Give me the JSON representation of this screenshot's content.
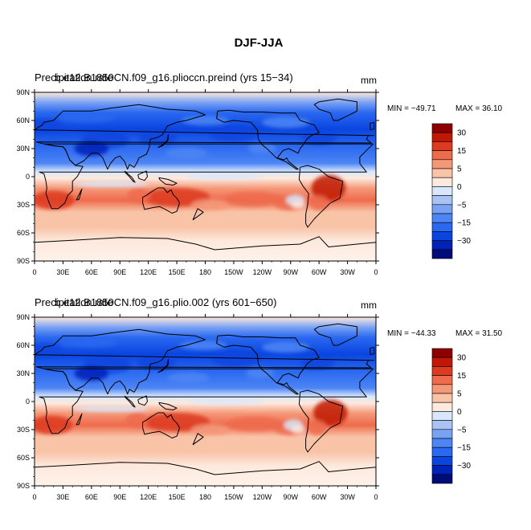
{
  "page": {
    "title": "DJF-JJA"
  },
  "colorbar": {
    "levels": [
      -30,
      -25,
      -20,
      -15,
      -10,
      -5,
      -2,
      2,
      5,
      10,
      15,
      20,
      25,
      30
    ],
    "labeled_levels": [
      "30",
      "15",
      "5",
      "0",
      "−5",
      "−15",
      "−30"
    ],
    "colors": [
      "#000c78",
      "#0022b8",
      "#0a45e0",
      "#2a68f0",
      "#4d85f5",
      "#7aa2f4",
      "#a9c3f5",
      "#d8e7fb",
      "#fde9dd",
      "#f9c3a8",
      "#f59878",
      "#ee6b4c",
      "#dc3b22",
      "#c01707",
      "#8e0000"
    ]
  },
  "panels": [
    {
      "overlay_a": "Precipitation rate",
      "overlay_b": "b.e12.B1850CN.f09_g16.plioccn.preind (yrs 15−34)",
      "units": "mm",
      "min_label": "MIN = −49.71",
      "max_label": "MAX =  36.10",
      "lat_labels": [
        "90N",
        "60N",
        "30N",
        "0",
        "30S",
        "60S",
        "90S"
      ],
      "lon_labels": [
        "0",
        "30E",
        "60E",
        "90E",
        "120E",
        "150E",
        "180",
        "150W",
        "120W",
        "90W",
        "60W",
        "30W",
        "0"
      ]
    },
    {
      "overlay_a": "Precipitation rate",
      "overlay_b": "b.e12.B1850CN.f09_g16.plio.002 (yrs 601−650)",
      "units": "mm",
      "min_label": "MIN = −44.33",
      "max_label": "MAX =  31.50",
      "lat_labels": [
        "90N",
        "60N",
        "30N",
        "0",
        "30S",
        "60S",
        "90S"
      ],
      "lon_labels": [
        "0",
        "30E",
        "60E",
        "90E",
        "120E",
        "150E",
        "180",
        "150W",
        "120W",
        "90W",
        "60W",
        "30W",
        "0"
      ]
    }
  ]
}
